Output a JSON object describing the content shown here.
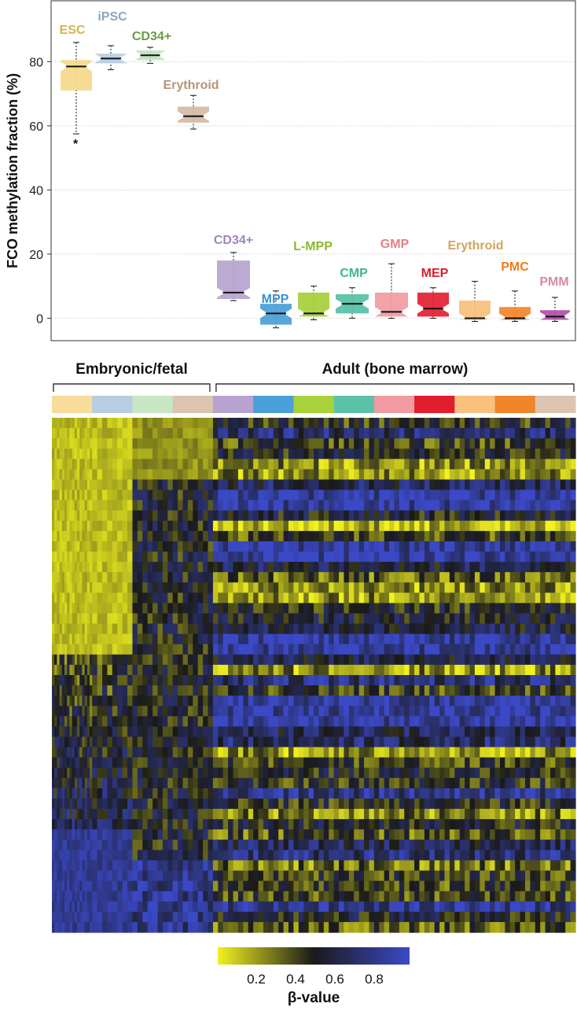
{
  "chart_data": [
    {
      "type": "box",
      "ylabel": "FCO methylation fraction (%)",
      "ylim": [
        -7,
        99
      ],
      "yticks": [
        0,
        20,
        40,
        60,
        80
      ],
      "grid": true,
      "groups": [
        {
          "label": "ESC",
          "color": "#f5d98a",
          "label_color": "#d9b24a",
          "median": 78.5,
          "q1": 71,
          "q3": 80.5,
          "whisker_low": 57.5,
          "whisker_high": 86,
          "outlier_marker": "*"
        },
        {
          "label": "iPSC",
          "color": "#b6cde2",
          "label_color": "#8aa6c1",
          "median": 81,
          "q1": 79.5,
          "q3": 82.5,
          "whisker_low": 77.5,
          "whisker_high": 85
        },
        {
          "label": "CD34+",
          "color": "#bfe3bd",
          "label_color": "#6a9d45",
          "median": 82,
          "q1": 80.5,
          "q3": 83.5,
          "whisker_low": 79.5,
          "whisker_high": 84.5
        },
        {
          "label": "Erythroid",
          "color": "#d5b9a4",
          "label_color": "#b79478",
          "median": 63,
          "q1": 61,
          "q3": 66,
          "whisker_low": 59,
          "whisker_high": 69.5
        },
        {
          "label": "CD34+",
          "color": "#b6a3cf",
          "label_color": "#9d86bd",
          "median": 8,
          "q1": 6,
          "q3": 18,
          "whisker_low": 5.5,
          "whisker_high": 20.5
        },
        {
          "label": "MPP",
          "color": "#4aa0d8",
          "label_color": "#3b8fd0",
          "median": 1.5,
          "q1": -2,
          "q3": 4.5,
          "whisker_low": -3,
          "whisker_high": 8.5
        },
        {
          "label": "L-MPP",
          "color": "#a7cf3a",
          "label_color": "#8cba2a",
          "median": 1.5,
          "q1": 0.5,
          "q3": 8,
          "whisker_low": -0.5,
          "whisker_high": 10
        },
        {
          "label": "CMP",
          "color": "#55c0a7",
          "label_color": "#3fb597",
          "median": 4.5,
          "q1": 1.5,
          "q3": 7.5,
          "whisker_low": 0,
          "whisker_high": 9.5
        },
        {
          "label": "GMP",
          "color": "#f19aa1",
          "label_color": "#e57f86",
          "median": 2,
          "q1": 0.5,
          "q3": 8,
          "whisker_low": 0,
          "whisker_high": 17
        },
        {
          "label": "MEP",
          "color": "#e42030",
          "label_color": "#d81f2f",
          "median": 3,
          "q1": 0.5,
          "q3": 8,
          "whisker_low": 0,
          "whisker_high": 9.5
        },
        {
          "label": "Erythroid",
          "color": "#f7c07c",
          "label_color": "#d2a45e",
          "median": 0,
          "q1": -0.5,
          "q3": 5.5,
          "whisker_low": -1,
          "whisker_high": 11.5
        },
        {
          "label": "PMC",
          "color": "#f28527",
          "label_color": "#ea7d1d",
          "median": 0,
          "q1": -0.5,
          "q3": 3.5,
          "whisker_low": -1,
          "whisker_high": 8.5
        },
        {
          "label": "PMM",
          "color": "#b04ea6",
          "label_color": "#d88aa2",
          "median": 0.5,
          "q1": -0.5,
          "q3": 2.5,
          "whisker_low": -1,
          "whisker_high": 6.5
        }
      ]
    },
    {
      "type": "heatmap",
      "column_groups": [
        {
          "label": "Embryonic/fetal",
          "span": [
            0,
            4
          ]
        },
        {
          "label": "Adult (bone marrow)",
          "span": [
            4,
            13
          ]
        }
      ],
      "column_annotation_colors": [
        "#f8dc9a",
        "#b6cde2",
        "#c8e6c3",
        "#dcc4b0",
        "#b6a3cf",
        "#4aa0d8",
        "#a9d13a",
        "#5bc2a8",
        "#f39ba2",
        "#e21d2e",
        "#f9c17d",
        "#f2852a",
        "#dcc4b0"
      ],
      "colorscale": {
        "stops": [
          "#f2f21f",
          "#1a1a1a",
          "#3b49c6"
        ],
        "range": [
          0.0,
          0.95
        ]
      },
      "colorbar": {
        "label": "β-value",
        "ticks": [
          "0.2",
          "0.4",
          "0.6",
          "0.8"
        ]
      },
      "rows": 50,
      "columns_per_group": [
        16,
        8,
        8,
        8,
        8,
        8,
        8,
        8,
        8,
        8,
        8,
        8,
        8
      ]
    }
  ]
}
